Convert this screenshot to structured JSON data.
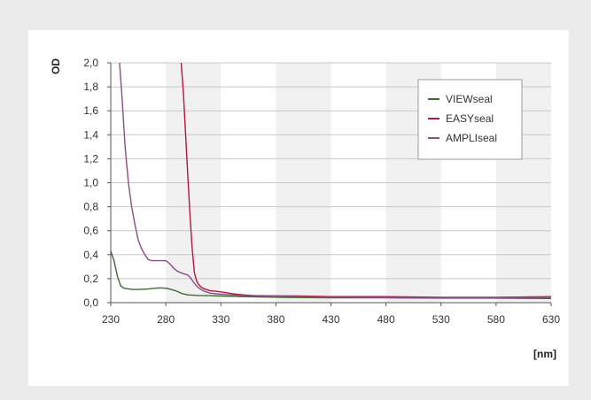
{
  "chart_data": {
    "type": "line",
    "ylabel": "OD",
    "xlabel": "[nm]",
    "xlim": [
      230,
      630
    ],
    "ylim": [
      0,
      2.0
    ],
    "x_ticks": [
      "230",
      "280",
      "330",
      "380",
      "430",
      "480",
      "530",
      "580",
      "630"
    ],
    "y_ticks": [
      "0,0",
      "0,2",
      "0,4",
      "0,6",
      "0,8",
      "1,0",
      "1,2",
      "1,4",
      "1,6",
      "1,8",
      "2,0"
    ],
    "grid": "horizontal",
    "background_bands": [
      [
        280,
        330
      ],
      [
        380,
        430
      ],
      [
        480,
        530
      ],
      [
        580,
        630
      ]
    ],
    "legend_position": "top-right",
    "series": [
      {
        "name": "VIEWseal",
        "color": "#3d6b2f",
        "x": [
          230,
          233,
          236,
          239,
          242,
          246,
          250,
          255,
          260,
          265,
          270,
          275,
          280,
          285,
          290,
          295,
          300,
          305,
          310,
          320,
          330,
          350,
          380,
          400,
          430,
          480,
          530,
          580,
          630
        ],
        "y": [
          0.43,
          0.35,
          0.22,
          0.14,
          0.12,
          0.115,
          0.11,
          0.11,
          0.112,
          0.115,
          0.12,
          0.123,
          0.12,
          0.11,
          0.095,
          0.075,
          0.065,
          0.062,
          0.06,
          0.058,
          0.055,
          0.05,
          0.045,
          0.043,
          0.04,
          0.04,
          0.038,
          0.038,
          0.035
        ]
      },
      {
        "name": "EASYseal",
        "color": "#b5163d",
        "x": [
          294,
          296,
          298,
          300,
          302,
          304,
          306,
          308,
          310,
          312,
          315,
          320,
          325,
          330,
          340,
          350,
          360,
          380,
          400,
          430,
          480,
          530,
          580,
          630
        ],
        "y": [
          2.0,
          1.75,
          1.4,
          1.05,
          0.72,
          0.45,
          0.25,
          0.18,
          0.15,
          0.13,
          0.115,
          0.1,
          0.095,
          0.09,
          0.075,
          0.065,
          0.06,
          0.057,
          0.055,
          0.05,
          0.05,
          0.045,
          0.045,
          0.05
        ]
      },
      {
        "name": "AMPLIseal",
        "color": "#8a4f85",
        "x": [
          238,
          240,
          243,
          246,
          249,
          252,
          255,
          258,
          261,
          264,
          267,
          270,
          275,
          280,
          283,
          285,
          288,
          291,
          295,
          300,
          303,
          306,
          309,
          312,
          315,
          320,
          330,
          340,
          350,
          380,
          400,
          430,
          480,
          530,
          580,
          630
        ],
        "y": [
          2.0,
          1.75,
          1.3,
          1.0,
          0.8,
          0.65,
          0.52,
          0.45,
          0.4,
          0.36,
          0.35,
          0.35,
          0.35,
          0.35,
          0.33,
          0.31,
          0.28,
          0.26,
          0.245,
          0.23,
          0.2,
          0.16,
          0.13,
          0.11,
          0.095,
          0.08,
          0.07,
          0.065,
          0.06,
          0.055,
          0.05,
          0.045,
          0.042,
          0.04,
          0.04,
          0.045
        ]
      }
    ]
  }
}
